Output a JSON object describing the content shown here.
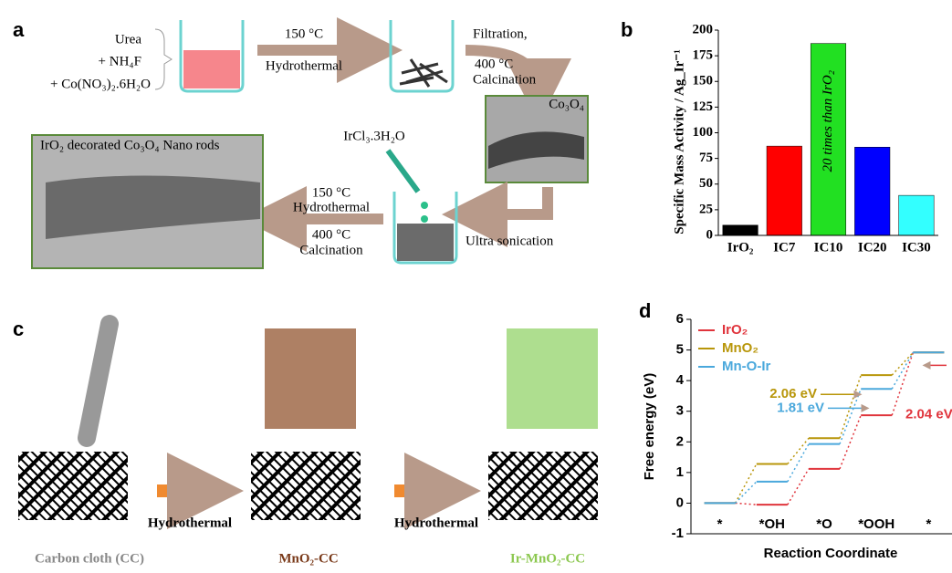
{
  "panel_a": {
    "label": "a",
    "reagents": [
      "Urea",
      "+ NH₄F",
      "+ Co(NO₃)₂.6H₂O"
    ],
    "step1": [
      "150 °C",
      "Hydrothermal"
    ],
    "step2": [
      "Filtration,",
      "400 °C",
      "Calcination"
    ],
    "product1": "Co₃O₄",
    "precursor": "IrCl₃.3H₂O",
    "sonication": "Ultra sonication",
    "step3": [
      "150 °C",
      "Hydrothermal",
      "400 °C",
      "Calcination"
    ],
    "product2": "IrO₂ decorated Co₃O₄ Nano rods"
  },
  "panel_c": {
    "label": "c",
    "steps": [
      "Hydrothermal",
      "Hydrothermal"
    ],
    "materials": [
      "Carbon cloth (CC)",
      "MnO₂-CC",
      "Ir-MnO₂-CC"
    ]
  },
  "chart_data": [
    {
      "type": "bar",
      "label": "b",
      "y_label": "Specific Mass Activity / Ag_Ir⁻¹",
      "categories": [
        "IrO₂",
        "IC7",
        "IC10",
        "IC20",
        "IC30"
      ],
      "values": [
        10,
        87,
        187,
        86,
        39
      ],
      "colors": [
        "#000000",
        "#ff0000",
        "#22e022",
        "#0000ff",
        "#33ffff"
      ],
      "ylim": [
        0,
        200
      ],
      "yticks": [
        0,
        25,
        50,
        75,
        100,
        125,
        150,
        175,
        200
      ],
      "annotation": "20 times than IrO₂"
    },
    {
      "type": "energy-levels",
      "label": "d",
      "x_label": "Reaction Coordinate",
      "y_label": "Free energy (eV)",
      "categories": [
        "*",
        "*OH",
        "*O",
        "*OOH",
        "*"
      ],
      "series": [
        {
          "name": "IrO₂",
          "color": "#e0343c",
          "values": [
            0,
            -0.05,
            1.12,
            2.87,
            4.92
          ]
        },
        {
          "name": "MnO₂",
          "color": "#b8960a",
          "values": [
            0,
            1.28,
            2.12,
            4.18,
            4.92
          ]
        },
        {
          "name": "Mn-O-Ir",
          "color": "#4aa8dc",
          "values": [
            0,
            0.7,
            1.93,
            3.73,
            4.92
          ]
        }
      ],
      "ylim": [
        -1,
        6
      ],
      "yticks": [
        -1,
        0,
        1,
        2,
        3,
        4,
        5,
        6
      ],
      "legend": "upper left",
      "annotations": [
        "2.06 eV",
        "1.81 eV",
        "2.04 eV"
      ]
    }
  ]
}
